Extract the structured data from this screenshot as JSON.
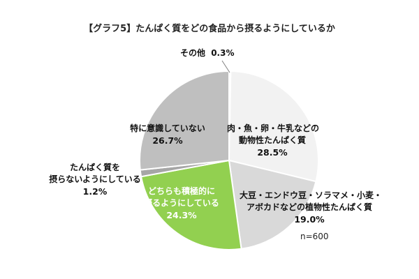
{
  "title": "【グラフ5】たんぱく質をどの食品から摂るようにしているか",
  "n_label": "n=600",
  "chart_data": {
    "type": "pie",
    "title": "【グラフ5】たんぱく質をどの食品から摂るようにしているか",
    "unit": "%",
    "slices": [
      {
        "label": "その他",
        "value": 0.3,
        "color": "#ffffff"
      },
      {
        "label": "肉・魚・卵・牛乳などの動物性たんぱく質",
        "value": 28.5,
        "color": "#f2f2f2"
      },
      {
        "label": "大豆・エンドウ豆・ソラマメ・小麦・アボカドなどの植物性たんぱく質",
        "value": 19.0,
        "color": "#d9d9d9"
      },
      {
        "label": "どちらも積極的に摂るようにしている",
        "value": 24.3,
        "color": "#92d050"
      },
      {
        "label": "たんぱく質を摂らないようにしている",
        "value": 1.2,
        "color": "#a6a6a6"
      },
      {
        "label": "特に意識していない",
        "value": 26.7,
        "color": "#bfbfbf"
      }
    ],
    "labels": {
      "other": {
        "line1": "その他",
        "pct": "0.3%"
      },
      "animal": {
        "line1": "肉・魚・卵・牛乳などの",
        "line2": "動物性たんぱく質",
        "pct": "28.5%"
      },
      "plant": {
        "line1": "大豆・エンドウ豆・ソラマメ・小麦・",
        "line2": "アボカドなどの植物性たんぱく質",
        "pct": "19.0%"
      },
      "both": {
        "line1": "どちらも積極的に",
        "line2": "摂るようにしている",
        "pct": "24.3%"
      },
      "none": {
        "line1": "たんぱく質を",
        "line2": "摂らないようにしている",
        "pct": "1.2%"
      },
      "unaware": {
        "line1": "特に意識していない",
        "pct": "26.7%"
      }
    }
  }
}
